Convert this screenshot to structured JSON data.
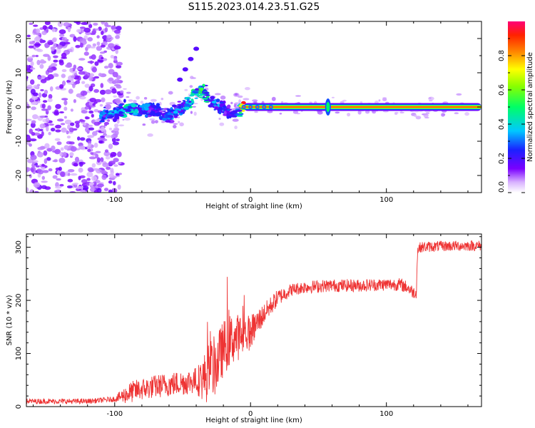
{
  "title": "S115.2023.014.23.51.G25",
  "chart_data": [
    {
      "type": "heatmap",
      "description_of_axes": "spectrogram",
      "xlabel": "Height of straight line (km)",
      "ylabel": "Frequency (Hz)",
      "xlim": [
        -165,
        170
      ],
      "ylim": [
        -25,
        25
      ],
      "xticks": [
        -100,
        0,
        100
      ],
      "yticks": [
        -20,
        -10,
        0,
        10,
        20
      ],
      "colorbar": {
        "label": "Normalized spectral amplitude",
        "range": [
          0.0,
          1.0
        ],
        "ticks": [
          0.0,
          0.2,
          0.4,
          0.6,
          0.8
        ],
        "tick_labels": [
          "0.0",
          "0.2",
          "0.4",
          "0.6",
          "0.8"
        ],
        "colormap": "white-violet-blue-cyan-green-yellow-red-magenta"
      },
      "ridge": {
        "x": [
          -110,
          -100,
          -90,
          -80,
          -70,
          -60,
          -50,
          -45,
          -40,
          -35,
          -30,
          -25,
          -20,
          -15,
          -10,
          -5,
          0,
          20,
          60,
          100,
          170
        ],
        "y": [
          -2.5,
          -2.0,
          0.0,
          -1.0,
          -1.0,
          -2.5,
          0.0,
          1.5,
          4.0,
          4.5,
          2.0,
          0.5,
          -0.5,
          -1.5,
          -2.0,
          0.0,
          0.0,
          0.0,
          0.0,
          0.0,
          0.0
        ],
        "amplitude": [
          0.35,
          0.4,
          0.45,
          0.35,
          0.3,
          0.3,
          0.35,
          0.45,
          0.5,
          0.55,
          0.45,
          0.35,
          0.3,
          0.3,
          0.3,
          0.9,
          1.0,
          1.0,
          1.0,
          1.0,
          1.0
        ]
      },
      "noise_region_x": [
        -165,
        -95
      ],
      "branch": {
        "x": [
          -52,
          -48,
          -44,
          -40
        ],
        "y": [
          8,
          11,
          14,
          17
        ]
      }
    },
    {
      "type": "line",
      "xlabel": "Height of straight line (km)",
      "ylabel": "SNR (10 * v/v)",
      "xlim": [
        -165,
        170
      ],
      "ylim": [
        0,
        325
      ],
      "xticks": [
        -100,
        0,
        100
      ],
      "yticks": [
        0,
        100,
        200,
        300
      ],
      "color": "#ee3333",
      "trend": {
        "x": [
          -165,
          -120,
          -100,
          -85,
          -70,
          -50,
          -35,
          -25,
          -20,
          -15,
          -10,
          -5,
          0,
          10,
          20,
          30,
          40,
          60,
          80,
          100,
          110,
          115,
          120,
          122,
          123,
          125,
          140,
          160,
          170
        ],
        "y": [
          10,
          10,
          14,
          30,
          38,
          45,
          52,
          80,
          110,
          125,
          130,
          135,
          140,
          175,
          205,
          220,
          225,
          228,
          228,
          230,
          230,
          225,
          215,
          215,
          295,
          300,
          302,
          303,
          303
        ]
      },
      "noise_amplitude": {
        "x": [
          -165,
          -100,
          -90,
          -40,
          -30,
          -10,
          10,
          30,
          120,
          125,
          170
        ],
        "y": [
          5,
          5,
          20,
          25,
          60,
          45,
          20,
          12,
          12,
          10,
          10
        ]
      }
    }
  ]
}
